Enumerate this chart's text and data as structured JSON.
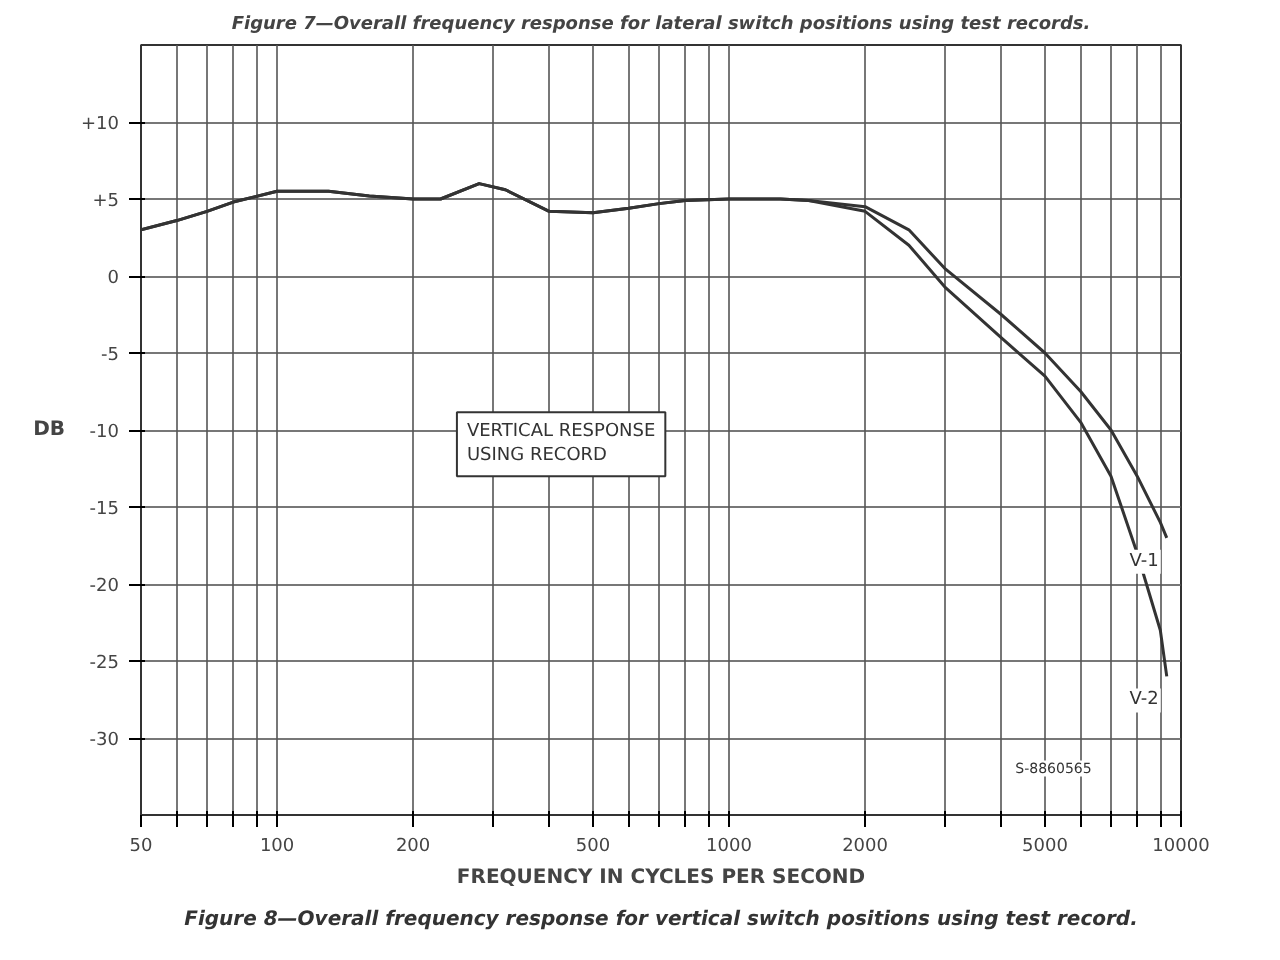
{
  "chart_data": {
    "type": "line",
    "xlabel": "FREQUENCY IN CYCLES PER SECOND",
    "ylabel": "DB",
    "log": "x",
    "grid": true,
    "marker": "none",
    "line_style": "solid",
    "xlim": [
      50,
      10000
    ],
    "ylim": [
      -35,
      15
    ],
    "xticks": [
      50,
      {
        "value": 60,
        "label": null
      },
      {
        "value": 70,
        "label": null
      },
      {
        "value": 80,
        "label": null
      },
      {
        "value": 90,
        "label": null
      },
      100,
      200,
      {
        "value": 300,
        "label": null
      },
      {
        "value": 400,
        "label": null
      },
      500,
      {
        "value": 600,
        "label": null
      },
      {
        "value": 700,
        "label": null
      },
      {
        "value": 800,
        "label": null
      },
      {
        "value": 900,
        "label": null
      },
      1000,
      2000,
      {
        "value": 3000,
        "label": null
      },
      {
        "value": 4000,
        "label": null
      },
      5000,
      {
        "value": 6000,
        "label": null
      },
      {
        "value": 7000,
        "label": null
      },
      {
        "value": 8000,
        "label": null
      },
      {
        "value": 9000,
        "label": null
      },
      10000
    ],
    "yticks": [
      {
        "value": 10,
        "label": "+10"
      },
      {
        "value": 5,
        "label": "+5"
      },
      0,
      -5,
      -10,
      -15,
      -20,
      -25,
      -30
    ],
    "x": [
      50,
      60,
      70,
      80,
      100,
      130,
      160,
      200,
      230,
      280,
      320,
      400,
      500,
      600,
      700,
      800,
      1000,
      1300,
      1500,
      2000,
      2500,
      3000,
      4000,
      5000,
      6000,
      7000,
      8000,
      9000,
      9300
    ],
    "series": [
      {
        "name": "V-1",
        "color": "#333333",
        "values": [
          3,
          3.6,
          4.2,
          4.8,
          5.5,
          5.5,
          5.2,
          5,
          5,
          6,
          5.6,
          4.2,
          4.1,
          4.4,
          4.7,
          4.9,
          5,
          5,
          4.9,
          4.5,
          3,
          0.5,
          -2.5,
          -5,
          -7.5,
          -10,
          -13,
          -16,
          -17
        ]
      },
      {
        "name": "V-2",
        "color": "#333333",
        "values": [
          3,
          3.6,
          4.2,
          4.8,
          5.5,
          5.5,
          5.2,
          5,
          5,
          6,
          5.6,
          4.2,
          4.1,
          4.4,
          4.7,
          4.9,
          5,
          5,
          4.9,
          4.2,
          2,
          -0.7,
          -4,
          -6.5,
          -9.5,
          -13,
          -18,
          -23,
          -26
        ]
      }
    ],
    "annotations": [
      "Figure 7—Overall frequency response for lateral switch positions using test records.",
      "VERTICAL RESPONSE\nUSING RECORD",
      "S-8860565",
      "Figure 8—Overall frequency response for vertical switch positions using test record."
    ]
  }
}
